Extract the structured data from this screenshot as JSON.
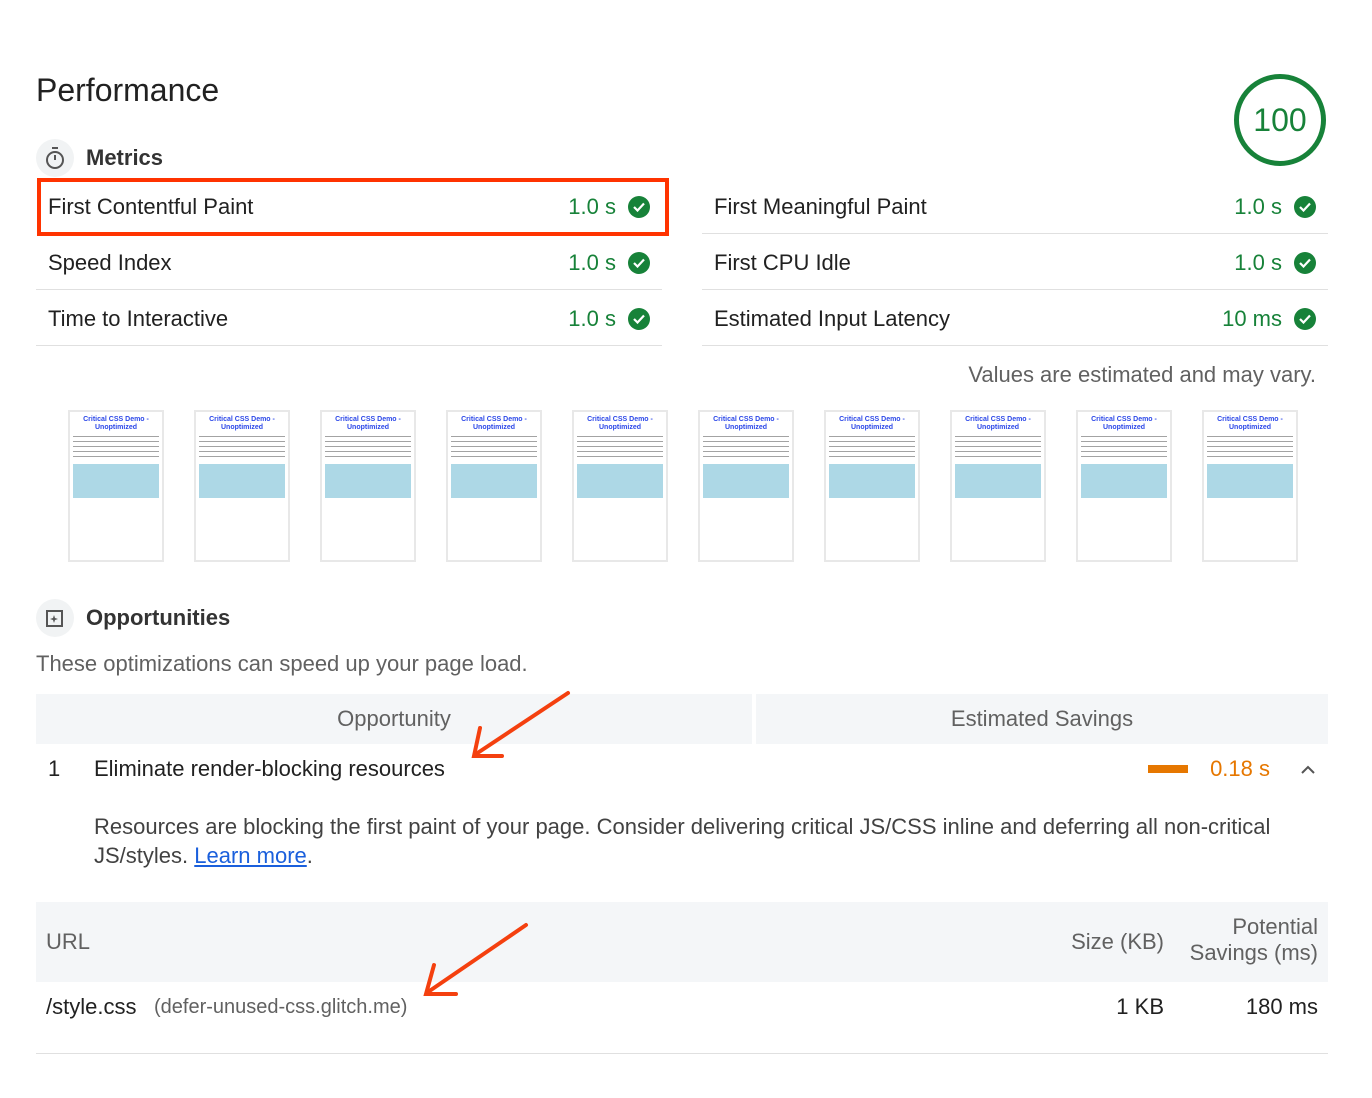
{
  "title": "Performance",
  "score": "100",
  "colors": {
    "pass": "#178239",
    "average": "#e67700",
    "highlight": "#ff3300",
    "link": "#1a5fdc"
  },
  "metrics": {
    "heading": "Metrics",
    "icon": "stopwatch-icon",
    "items": [
      {
        "label": "First Contentful Paint",
        "value": "1.0 s",
        "status": "pass"
      },
      {
        "label": "First Meaningful Paint",
        "value": "1.0 s",
        "status": "pass"
      },
      {
        "label": "Speed Index",
        "value": "1.0 s",
        "status": "pass"
      },
      {
        "label": "First CPU Idle",
        "value": "1.0 s",
        "status": "pass"
      },
      {
        "label": "Time to Interactive",
        "value": "1.0 s",
        "status": "pass"
      },
      {
        "label": "Estimated Input Latency",
        "value": "10 ms",
        "status": "pass"
      }
    ],
    "note": "Values are estimated and may vary."
  },
  "filmstrip": {
    "frame_title": "Critical CSS Demo - Unoptimized",
    "frame_count": 10
  },
  "opportunities": {
    "heading": "Opportunities",
    "icon": "sparkle-icon",
    "description": "These optimizations can speed up your page load.",
    "col_opportunity": "Opportunity",
    "col_savings": "Estimated Savings",
    "items": [
      {
        "index": "1",
        "title": "Eliminate render-blocking resources",
        "savings": "0.18 s",
        "detail": "Resources are blocking the first paint of your page. Consider delivering critical JS/CSS inline and deferring all non-critical JS/styles.",
        "learn_more": "Learn more",
        "table": {
          "col_url": "URL",
          "col_size": "Size (KB)",
          "col_savings_1": "Potential",
          "col_savings_2": "Savings (ms)",
          "rows": [
            {
              "url": "/style.css",
              "host": "(defer-unused-css.glitch.me)",
              "size": "1 KB",
              "savings": "180 ms"
            }
          ]
        }
      }
    ]
  }
}
